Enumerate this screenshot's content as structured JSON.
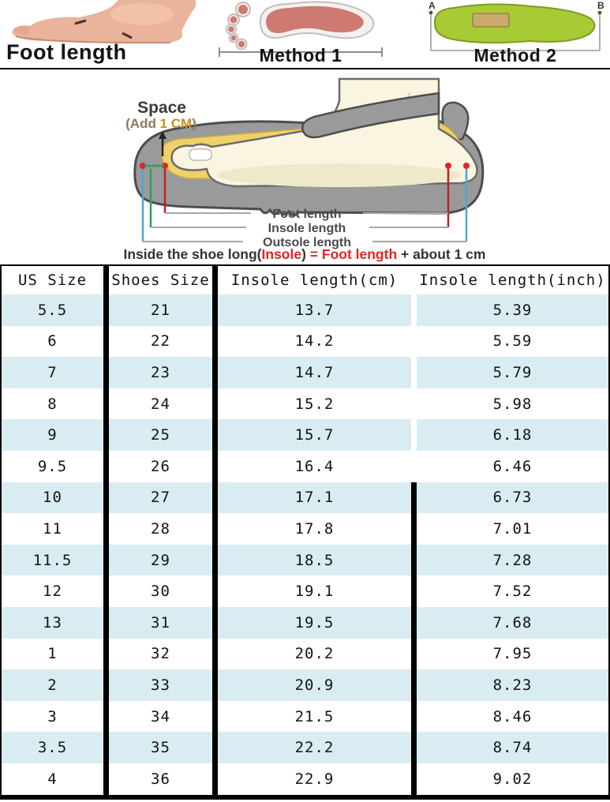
{
  "banner": {
    "foot_photo_label": "Foot length",
    "method1_label": "Method 1",
    "method2_label": "Method 2",
    "insole_marker_a": "A",
    "insole_marker_b": "B"
  },
  "diagram": {
    "space_title": "Space",
    "space_sub_prefix": "(Add ",
    "space_sub_highlight": "1 CM",
    "space_sub_suffix": ")",
    "measurements": [
      "Foot length",
      "Insole length",
      "Outsole length"
    ],
    "formula": {
      "part1": "Inside the shoe long(",
      "part2": "Insole",
      "part3": ") ",
      "part4": "= ",
      "part5": "Foot length",
      "part6": " + about 1 cm"
    }
  },
  "table": {
    "headers": [
      "US Size",
      "Shoes Size",
      "Insole length(cm)",
      "Insole length(inch)"
    ]
  },
  "chart_data": {
    "type": "table",
    "columns": [
      "US Size",
      "Shoes Size",
      "Insole length(cm)",
      "Insole length(inch)"
    ],
    "rows": [
      [
        "5.5",
        "21",
        "13.7",
        "5.39"
      ],
      [
        "6",
        "22",
        "14.2",
        "5.59"
      ],
      [
        "7",
        "23",
        "14.7",
        "5.79"
      ],
      [
        "8",
        "24",
        "15.2",
        "5.98"
      ],
      [
        "9",
        "25",
        "15.7",
        "6.18"
      ],
      [
        "9.5",
        "26",
        "16.4",
        "6.46"
      ],
      [
        "10",
        "27",
        "17.1",
        "6.73"
      ],
      [
        "11",
        "28",
        "17.8",
        "7.01"
      ],
      [
        "11.5",
        "29",
        "18.5",
        "7.28"
      ],
      [
        "12",
        "30",
        "19.1",
        "7.52"
      ],
      [
        "13",
        "31",
        "19.5",
        "7.68"
      ],
      [
        "1",
        "32",
        "20.2",
        "7.95"
      ],
      [
        "2",
        "33",
        "20.9",
        "8.23"
      ],
      [
        "3",
        "34",
        "21.5",
        "8.46"
      ],
      [
        "3.5",
        "35",
        "22.2",
        "8.74"
      ],
      [
        "4",
        "36",
        "22.9",
        "9.02"
      ]
    ]
  },
  "colors": {
    "row_stripe": "#d9ecf2",
    "accent_red": "#e02525",
    "accent_orange": "#cf8b1c",
    "insole_green": "#a7ca35",
    "footprint_pink": "#cd7b72",
    "shoe_gray": "#9a9a9a",
    "insole_yellow": "#f0d169",
    "foot_cream": "#faf5e0",
    "measure_blue": "#4aa8d8",
    "measure_green": "#2aa35a"
  }
}
